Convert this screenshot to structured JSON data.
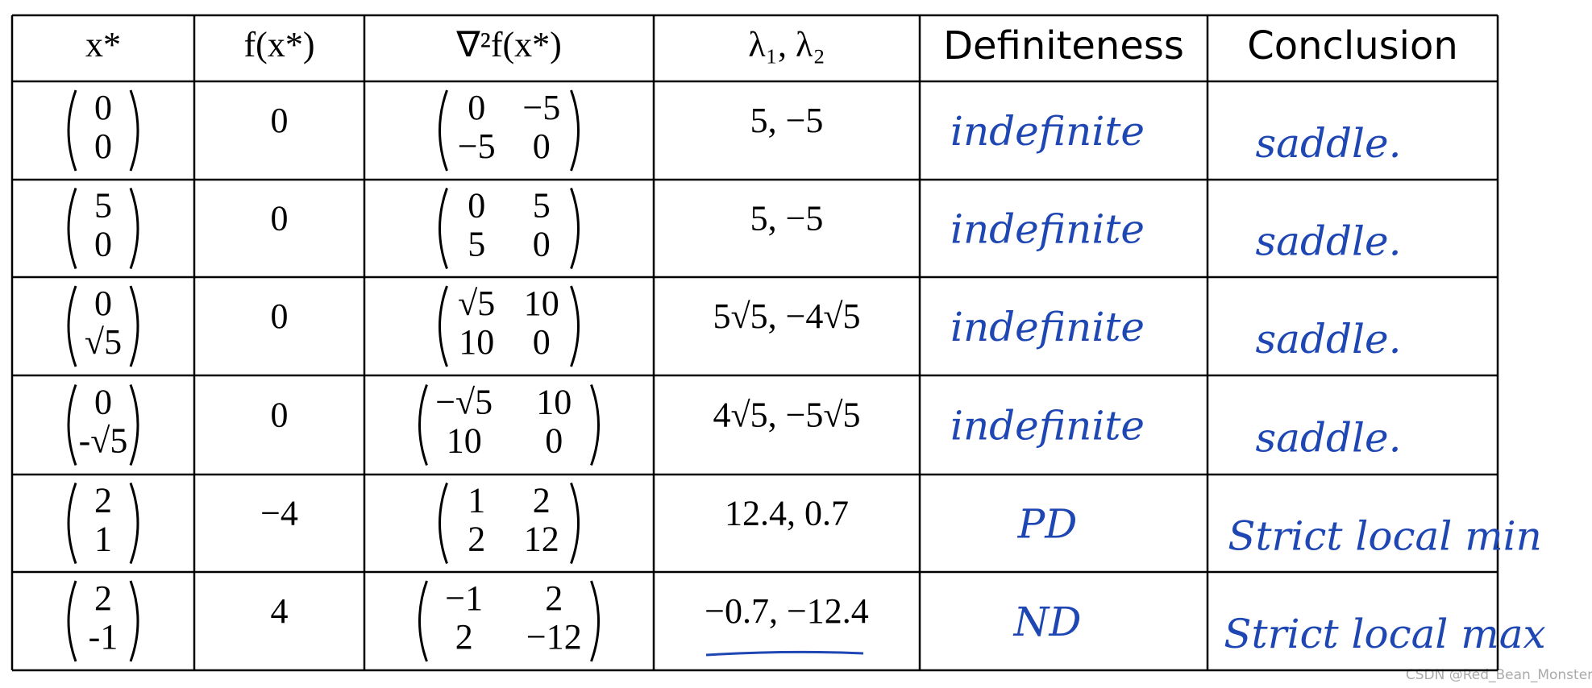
{
  "table": {
    "header": [
      "x*",
      "f(x*)",
      "∇²f(x*)",
      "λ₁, λ₂",
      "Definiteness",
      "Conclusion"
    ],
    "rows": [
      {
        "x_star": [
          "0",
          "0"
        ],
        "f": "0",
        "hessian": [
          [
            "0",
            "−5"
          ],
          [
            "−5",
            "0"
          ]
        ],
        "eigenvalues": "5, −5",
        "definiteness": "indefinite",
        "conclusion": "saddle."
      },
      {
        "x_star": [
          "5",
          "0"
        ],
        "f": "0",
        "hessian": [
          [
            "0",
            "5"
          ],
          [
            "5",
            "0"
          ]
        ],
        "eigenvalues": "5, −5",
        "definiteness": "indefinite",
        "conclusion": "saddle."
      },
      {
        "x_star": [
          "0",
          "√5"
        ],
        "f": "0",
        "hessian": [
          [
            "√5",
            "10"
          ],
          [
            "10",
            "0"
          ]
        ],
        "eigenvalues": "5√5, −4√5",
        "definiteness": "indefinite",
        "conclusion": "saddle."
      },
      {
        "x_star": [
          "0",
          "-√5"
        ],
        "f": "0",
        "hessian": [
          [
            "−√5",
            "10"
          ],
          [
            "10",
            "0"
          ]
        ],
        "eigenvalues": "4√5, −5√5",
        "definiteness": "indefinite",
        "conclusion": "saddle."
      },
      {
        "x_star": [
          "2",
          "1"
        ],
        "f": "−4",
        "hessian": [
          [
            "1",
            "2"
          ],
          [
            "2",
            "12"
          ]
        ],
        "eigenvalues": "12.4, 0.7",
        "definiteness": "PD",
        "conclusion": "Strict local min"
      },
      {
        "x_star": [
          "2",
          "-1"
        ],
        "f": "4",
        "hessian": [
          [
            "−1",
            "2"
          ],
          [
            "2",
            "−12"
          ]
        ],
        "eigenvalues": "−0.7, −12.4",
        "definiteness": "ND",
        "conclusion": "Strict local max"
      }
    ]
  },
  "watermark": "CSDN @Red_Bean_Monster"
}
